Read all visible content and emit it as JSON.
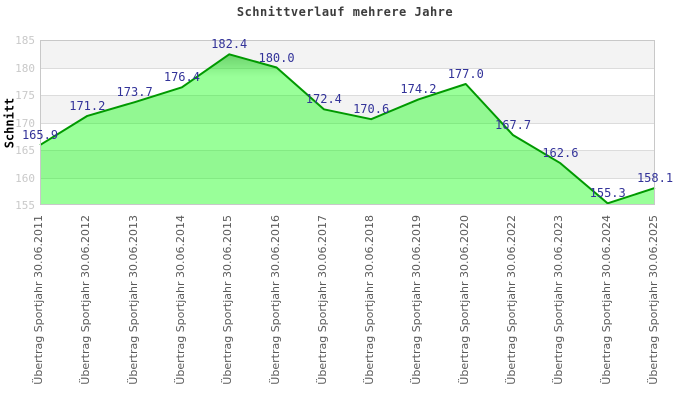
{
  "chart_data": {
    "type": "area",
    "title": "Schnittverlauf mehrere Jahre",
    "ylabel": "Schnitt",
    "xlabel": "",
    "categories": [
      "Übertrag Sportjahr 30.06.2011",
      "Übertrag Sportjahr 30.06.2012",
      "Übertrag Sportjahr 30.06.2013",
      "Übertrag Sportjahr 30.06.2014",
      "Übertrag Sportjahr 30.06.2015",
      "Übertrag Sportjahr 30.06.2016",
      "Übertrag Sportjahr 30.06.2017",
      "Übertrag Sportjahr 30.06.2018",
      "Übertrag Sportjahr 30.06.2019",
      "Übertrag Sportjahr 30.06.2020",
      "Übertrag Sportjahr 30.06.2022",
      "Übertrag Sportjahr 30.06.2023",
      "Übertrag Sportjahr 30.06.2024",
      "Übertrag Sportjahr 30.06.2025"
    ],
    "values": [
      165.9,
      171.2,
      173.7,
      176.4,
      182.4,
      180.0,
      172.4,
      170.6,
      174.2,
      177.0,
      167.7,
      162.6,
      155.3,
      158.1
    ],
    "value_labels": [
      "165.9",
      "171.2",
      "173.7",
      "176.4",
      "182.4",
      "180.0",
      "172.4",
      "170.6",
      "174.2",
      "177.0",
      "167.7",
      "162.6",
      "155.3",
      "158.1"
    ],
    "ylim": [
      155,
      185
    ],
    "yticks": [
      185,
      180,
      175,
      170,
      165,
      160,
      155
    ],
    "grid": "horizontal-bands-alternating",
    "legend": "none",
    "colors": {
      "line": "#009900",
      "fill": "rgba(0,255,0,0.40)",
      "fill_top": "rgba(0,180,0,0.55)",
      "value_label": "#333399",
      "band_gray": "#f3f3f3",
      "band_white": "#ffffff",
      "ytick_text": "#c9c9c9",
      "xtick_text": "#5a5a5a",
      "title_text": "#3c3c3c",
      "plot_border": "#c8c8c8"
    }
  }
}
